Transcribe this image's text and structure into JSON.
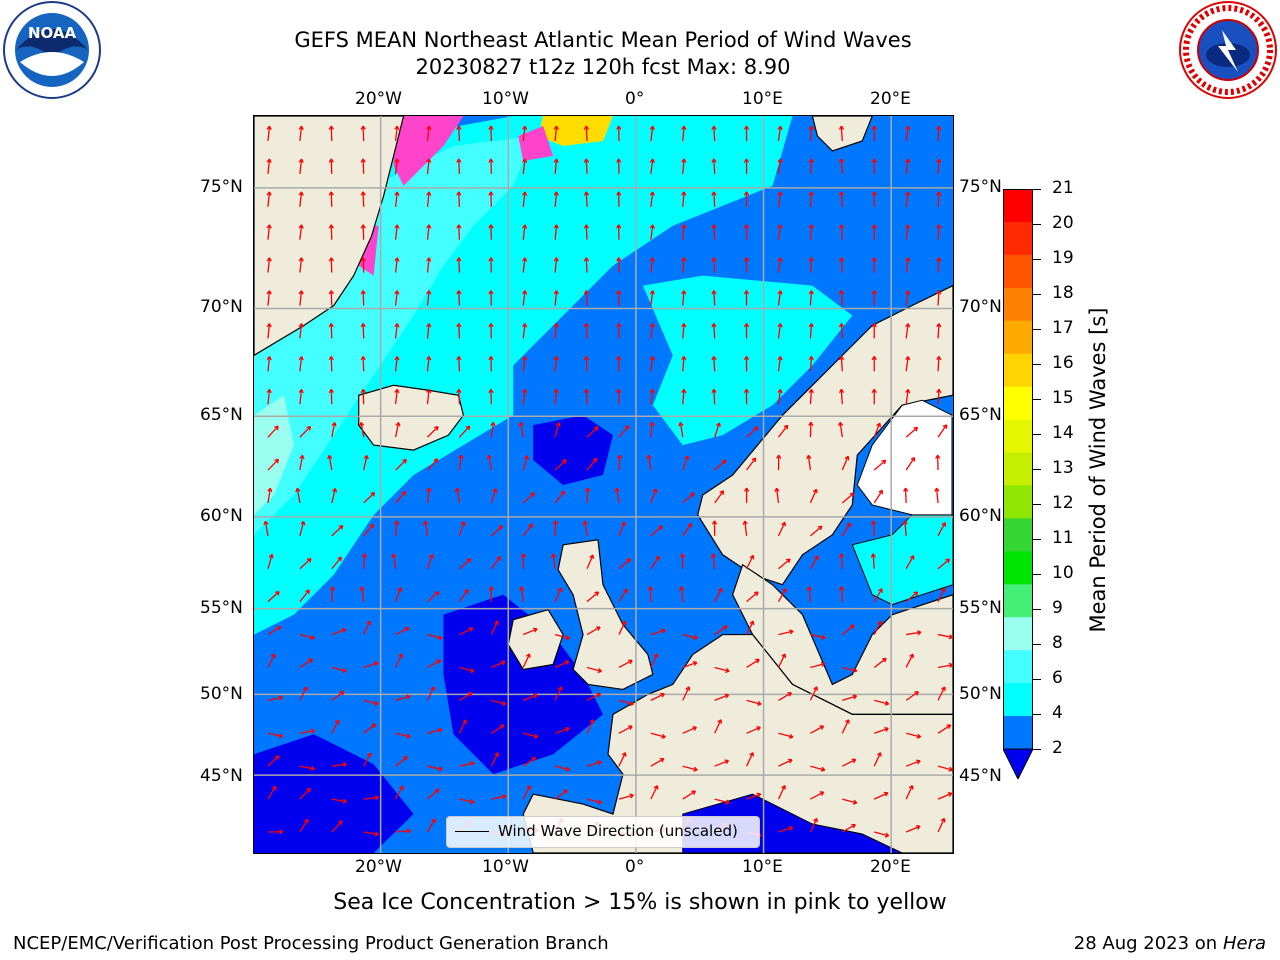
{
  "title": {
    "line1": "GEFS MEAN Northeast Atlantic Mean Period of Wind Waves",
    "line2": "20230827 t12z 120h fcst   Max: 8.90"
  },
  "map": {
    "lon_ticks_top": [
      "20°W",
      "10°W",
      "0°",
      "10°E",
      "20°E"
    ],
    "lon_ticks_bottom": [
      "20°W",
      "10°W",
      "0°",
      "10°E",
      "20°E"
    ],
    "lat_ticks_left": [
      "75°N",
      "70°N",
      "65°N",
      "60°N",
      "55°N",
      "50°N",
      "45°N"
    ],
    "lat_ticks_right": [
      "75°N",
      "70°N",
      "65°N",
      "60°N",
      "55°N",
      "50°N",
      "45°N"
    ],
    "land_color": "#efecdc",
    "vector_color": "#ff0000",
    "legend_label": "Wind Wave Direction (unscaled)"
  },
  "colorbar": {
    "title": "Mean Period of Wind Waves [s]",
    "labels": [
      "21",
      "20",
      "19",
      "18",
      "17",
      "16",
      "15",
      "14",
      "13",
      "12",
      "11",
      "10",
      "9",
      "8",
      "6",
      "4",
      "2"
    ],
    "colors": [
      "#ff0000",
      "#ff2a00",
      "#ff5500",
      "#ff8000",
      "#ffaa00",
      "#ffd400",
      "#ffff00",
      "#e6f500",
      "#c6ee00",
      "#8fe600",
      "#33d633",
      "#00e600",
      "#44ee77",
      "#9affee",
      "#44ffff",
      "#00ffff",
      "#0077ff",
      "#0000ee"
    ]
  },
  "footnote": "Sea Ice Concentration > 15% is shown in pink to yellow",
  "credit_left": "NCEP/EMC/Verification Post Processing Product Generation Branch",
  "credit_right_date": "28 Aug 2023 on",
  "credit_right_host": "Hera",
  "logos": {
    "noaa_text": "NOAA"
  }
}
